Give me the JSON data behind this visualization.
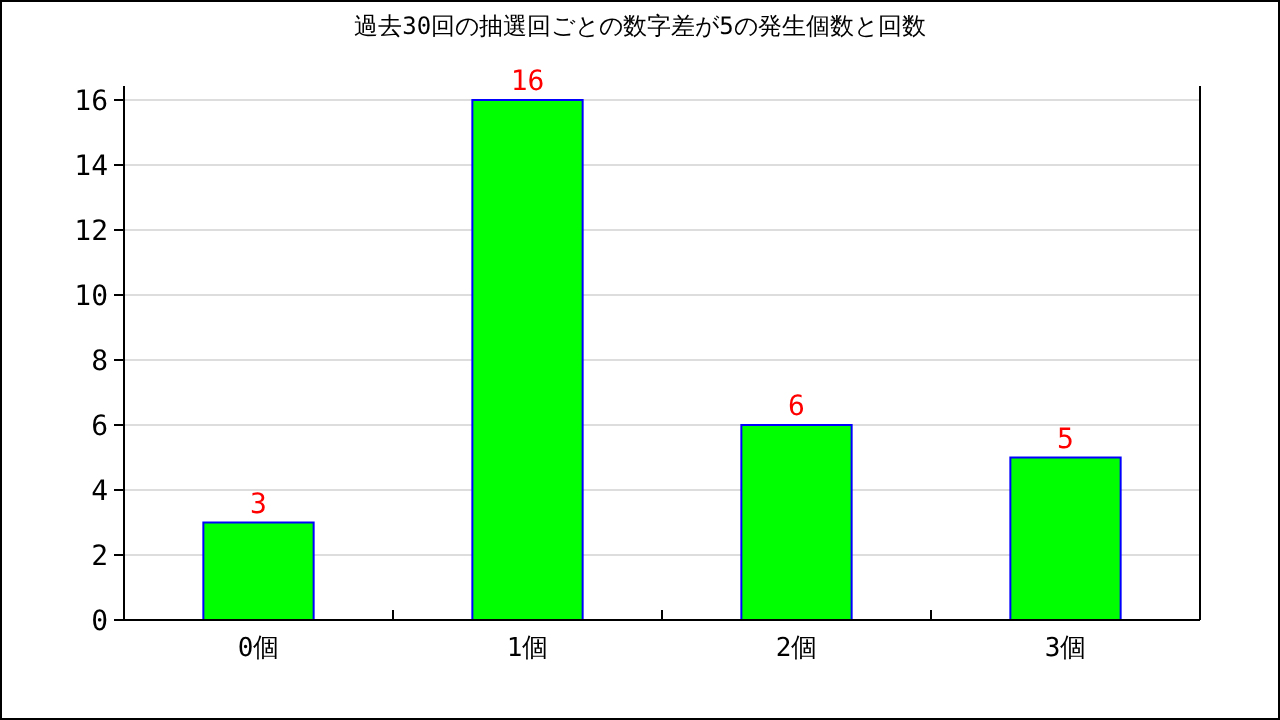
{
  "chart_data": {
    "type": "bar",
    "title": "過去30回の抽選回ごとの数字差が5の発生個数と回数",
    "categories": [
      "0個",
      "1個",
      "2個",
      "3個"
    ],
    "values": [
      3,
      16,
      6,
      5
    ],
    "color": "#00ff00",
    "ylim": [
      0,
      16
    ],
    "yticks": [
      0,
      2,
      4,
      6,
      8,
      10,
      12,
      14,
      16
    ],
    "grid": "y",
    "data_labels": true
  }
}
